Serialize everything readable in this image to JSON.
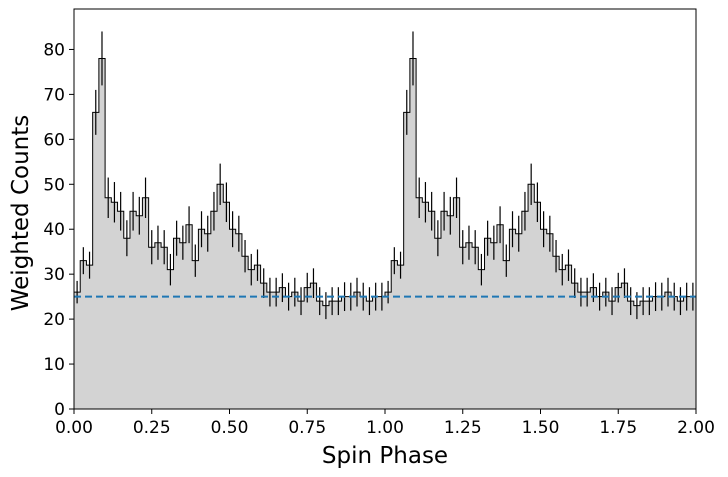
{
  "chart_data": {
    "type": "area",
    "title": "",
    "xlabel": "Spin Phase",
    "ylabel": "Weighted Counts",
    "xlim": [
      0,
      2
    ],
    "ylim": [
      0,
      89
    ],
    "grid": false,
    "legend": "none",
    "x_ticks": [
      0,
      0.25,
      0.5,
      0.75,
      1,
      1.25,
      1.5,
      1.75,
      2
    ],
    "x_tick_labels": [
      "0.00",
      "0.25",
      "0.50",
      "0.75",
      "1.00",
      "1.25",
      "1.50",
      "1.75",
      "2.00"
    ],
    "y_ticks": [
      0,
      10,
      20,
      30,
      40,
      50,
      60,
      70,
      80
    ],
    "y_tick_labels": [
      "0",
      "10",
      "20",
      "30",
      "40",
      "50",
      "60",
      "70",
      "80"
    ],
    "bins_per_cycle": 50,
    "cycles": 2,
    "series": [
      {
        "values": [
          26,
          33,
          32,
          66,
          78,
          47,
          46,
          44,
          38,
          44,
          43,
          47,
          36,
          37,
          36,
          31,
          38,
          37,
          41,
          33,
          40,
          39,
          44,
          50,
          46,
          40,
          39,
          34,
          31,
          32,
          28,
          26,
          26,
          27,
          25,
          26,
          24,
          27,
          28,
          24,
          23,
          24,
          24,
          25,
          25,
          26,
          25,
          24,
          25,
          25
        ],
        "errors": [
          2.5,
          3,
          3,
          5,
          6,
          4.5,
          4.5,
          4.3,
          4,
          4.3,
          4.2,
          4.5,
          3.8,
          3.8,
          3.8,
          3.5,
          3.9,
          3.8,
          4.1,
          3.6,
          4,
          4,
          4.3,
          4.6,
          4.4,
          4,
          4,
          3.6,
          3.5,
          3.5,
          3.3,
          3.2,
          3.2,
          3.2,
          3.1,
          3.2,
          3.1,
          3.3,
          3.3,
          3.1,
          3,
          3.1,
          3.1,
          3.2,
          3.1,
          3.2,
          3.1,
          3.1,
          3.1,
          3.1
        ],
        "fill_color": "#d3d3d3",
        "edge_color": "#000000"
      }
    ],
    "reference_line": {
      "y": 25,
      "style": "dashed",
      "color": "#1f77b4"
    }
  }
}
